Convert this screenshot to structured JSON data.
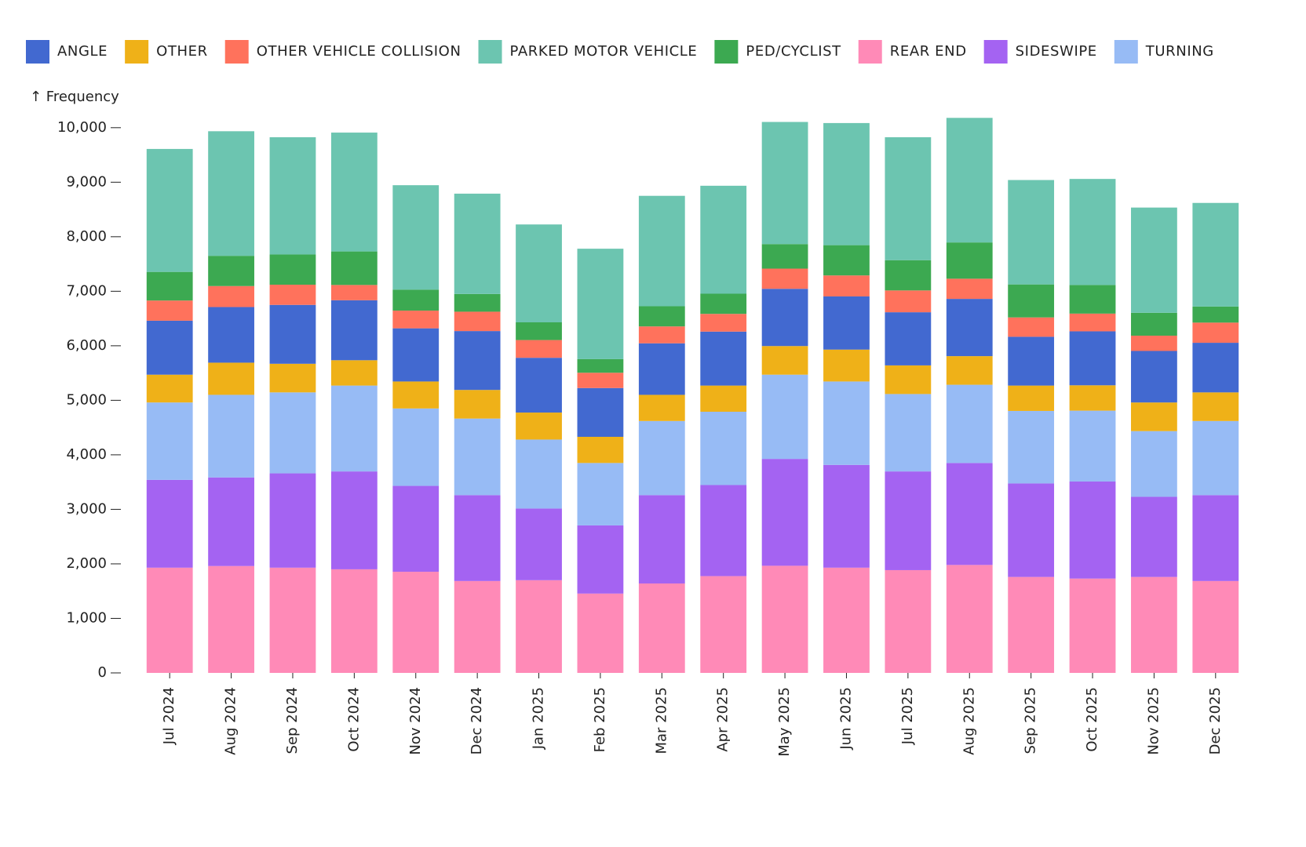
{
  "chart_data": {
    "type": "stacked_bar",
    "y_label": "↑ Frequency",
    "categories": [
      "Jul 2024",
      "Aug 2024",
      "Sep 2024",
      "Oct 2024",
      "Nov 2024",
      "Dec 2024",
      "Jan 2025",
      "Feb 2025",
      "Mar 2025",
      "Apr 2025",
      "May 2025",
      "Jun 2025",
      "Jul 2025",
      "Aug 2025",
      "Sep 2025",
      "Oct 2025",
      "Nov 2025",
      "Dec 2025"
    ],
    "series": [
      {
        "name": "ANGLE",
        "color": "#4269d0",
        "values": [
          990,
          1020,
          1080,
          1100,
          975,
          1080,
          1005,
          895,
          945,
          990,
          1050,
          975,
          975,
          1050,
          895,
          990,
          945,
          910
        ]
      },
      {
        "name": "OTHER",
        "color": "#efb118",
        "values": [
          510,
          590,
          525,
          465,
          495,
          525,
          495,
          480,
          480,
          480,
          525,
          585,
          525,
          525,
          465,
          465,
          525,
          525
        ]
      },
      {
        "name": "OTHER VEHICLE COLLISION",
        "color": "#ff725c",
        "values": [
          370,
          385,
          370,
          280,
          325,
          355,
          325,
          280,
          310,
          325,
          370,
          385,
          400,
          370,
          355,
          325,
          280,
          370
        ]
      },
      {
        "name": "PARKED MOTOR VEHICLE",
        "color": "#6cc5b0",
        "values": [
          2255,
          2285,
          2150,
          2180,
          1915,
          1840,
          1795,
          2025,
          2025,
          1980,
          2240,
          2240,
          2255,
          2285,
          1915,
          1945,
          1930,
          1900
        ]
      },
      {
        "name": "PED/CYCLIST",
        "color": "#3ca951",
        "values": [
          525,
          555,
          555,
          615,
          385,
          325,
          325,
          250,
          370,
          370,
          450,
          555,
          555,
          665,
          605,
          525,
          420,
          295
        ]
      },
      {
        "name": "REAR END",
        "color": "#ff8ab7",
        "values": [
          1930,
          1960,
          1930,
          1900,
          1855,
          1685,
          1700,
          1455,
          1640,
          1775,
          1965,
          1930,
          1885,
          1980,
          1760,
          1730,
          1760,
          1685
        ]
      },
      {
        "name": "SIDESWIPE",
        "color": "#a463f2",
        "values": [
          1610,
          1625,
          1730,
          1795,
          1575,
          1575,
          1315,
          1250,
          1620,
          1670,
          1960,
          1885,
          1810,
          1870,
          1715,
          1780,
          1470,
          1575
        ]
      },
      {
        "name": "TURNING",
        "color": "#97bbf5",
        "values": [
          1420,
          1515,
          1485,
          1575,
          1420,
          1405,
          1265,
          1145,
          1360,
          1345,
          1545,
          1530,
          1420,
          1435,
          1330,
          1300,
          1205,
          1360
        ]
      }
    ],
    "ylim": [
      0,
      10400
    ],
    "yticks": [
      0,
      {
        "value": 1000,
        "label": "1,000"
      },
      {
        "value": 2000,
        "label": "2,000"
      },
      {
        "value": 3000,
        "label": "3,000"
      },
      {
        "value": 4000,
        "label": "4,000"
      },
      {
        "value": 5000,
        "label": "5,000"
      },
      {
        "value": 6000,
        "label": "6,000"
      },
      {
        "value": 7000,
        "label": "7,000"
      },
      {
        "value": 8000,
        "label": "8,000"
      },
      {
        "value": 9000,
        "label": "9,000"
      },
      {
        "value": 10000,
        "label": "10,000"
      }
    ],
    "grid": false,
    "legend": "top"
  }
}
